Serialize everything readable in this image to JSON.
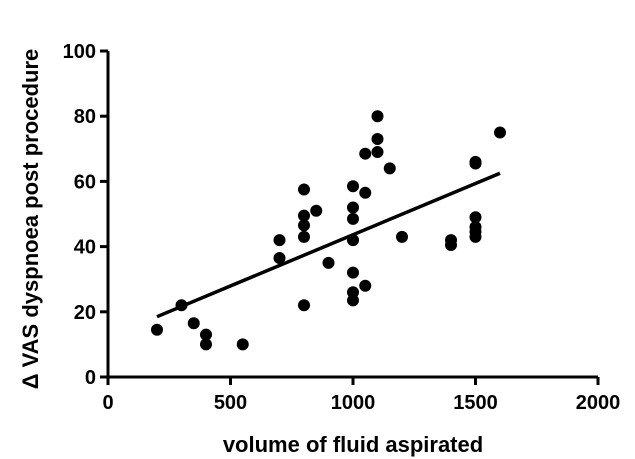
{
  "chart_data": {
    "type": "scatter",
    "title": "",
    "xlabel": "volume of fluid aspirated",
    "ylabel": "Δ VAS dyspnoea post procedure",
    "xlim": [
      0,
      2000
    ],
    "ylim": [
      0,
      100
    ],
    "x_ticks": [
      0,
      500,
      1000,
      1500,
      2000
    ],
    "y_ticks": [
      0,
      20,
      40,
      60,
      80,
      100
    ],
    "grid": false,
    "legend": "none",
    "marker_color": "#000000",
    "series": [
      {
        "points": [
          [
            200,
            14.5
          ],
          [
            300,
            22
          ],
          [
            350,
            16.5
          ],
          [
            400,
            13
          ],
          [
            400,
            10
          ],
          [
            550,
            10
          ],
          [
            700,
            42
          ],
          [
            700,
            36.5
          ],
          [
            800,
            57.5
          ],
          [
            800,
            49.5
          ],
          [
            800,
            46.5
          ],
          [
            800,
            43
          ],
          [
            800,
            22
          ],
          [
            850,
            51
          ],
          [
            900,
            35
          ],
          [
            1000,
            58.5
          ],
          [
            1000,
            52
          ],
          [
            1000,
            48.5
          ],
          [
            1000,
            42
          ],
          [
            1000,
            32
          ],
          [
            1000,
            26
          ],
          [
            1000,
            23.5
          ],
          [
            1050,
            68.5
          ],
          [
            1050,
            56.5
          ],
          [
            1050,
            28
          ],
          [
            1100,
            80
          ],
          [
            1100,
            73
          ],
          [
            1100,
            69
          ],
          [
            1150,
            64
          ],
          [
            1200,
            43
          ],
          [
            1400,
            42
          ],
          [
            1400,
            40.5
          ],
          [
            1500,
            66
          ],
          [
            1500,
            65.5
          ],
          [
            1500,
            49
          ],
          [
            1500,
            46
          ],
          [
            1500,
            44.5
          ],
          [
            1500,
            43
          ],
          [
            1600,
            75
          ]
        ]
      }
    ],
    "trendline": {
      "x": [
        200,
        1600
      ],
      "y": [
        18.5,
        62.5
      ]
    }
  }
}
